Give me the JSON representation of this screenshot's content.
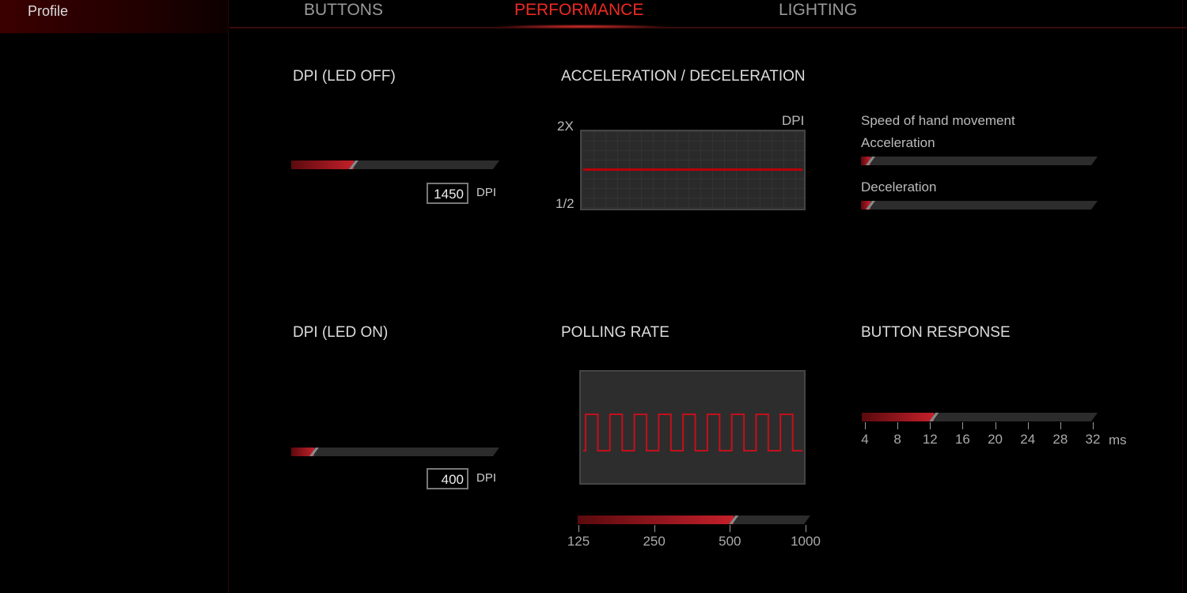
{
  "sidebar": {
    "profile_label": "Profile"
  },
  "tabs": [
    {
      "label": "BUTTONS",
      "active": false
    },
    {
      "label": "PERFORMANCE",
      "active": true
    },
    {
      "label": "LIGHTING",
      "active": false
    }
  ],
  "colors": {
    "accent": "#ef2a22",
    "fill": "#c4202a",
    "background": "#000000"
  },
  "dpi_led_off": {
    "title": "DPI (LED OFF)",
    "value": "1450",
    "unit": "DPI",
    "slider_fraction": 0.3
  },
  "dpi_led_on": {
    "title": "DPI (LED ON)",
    "value": "400",
    "unit": "DPI",
    "slider_fraction": 0.11
  },
  "acceleration": {
    "title": "ACCELERATION / DECELERATION",
    "y_top": "2X",
    "y_bottom": "1/2",
    "y_unit": "DPI",
    "line_level": "1X",
    "speed_label": "Speed of hand movement",
    "accel_label": "Acceleration",
    "accel_fraction": 0.04,
    "decel_label": "Deceleration",
    "decel_fraction": 0.04
  },
  "polling": {
    "title": "POLLING RATE",
    "ticks": [
      "125",
      "250",
      "500",
      "1000"
    ],
    "selected": "500",
    "wave_periods": 9
  },
  "button_response": {
    "title": "BUTTON RESPONSE",
    "ticks": [
      "4",
      "8",
      "12",
      "16",
      "20",
      "24",
      "28",
      "32"
    ],
    "unit": "ms",
    "selected": "12"
  }
}
